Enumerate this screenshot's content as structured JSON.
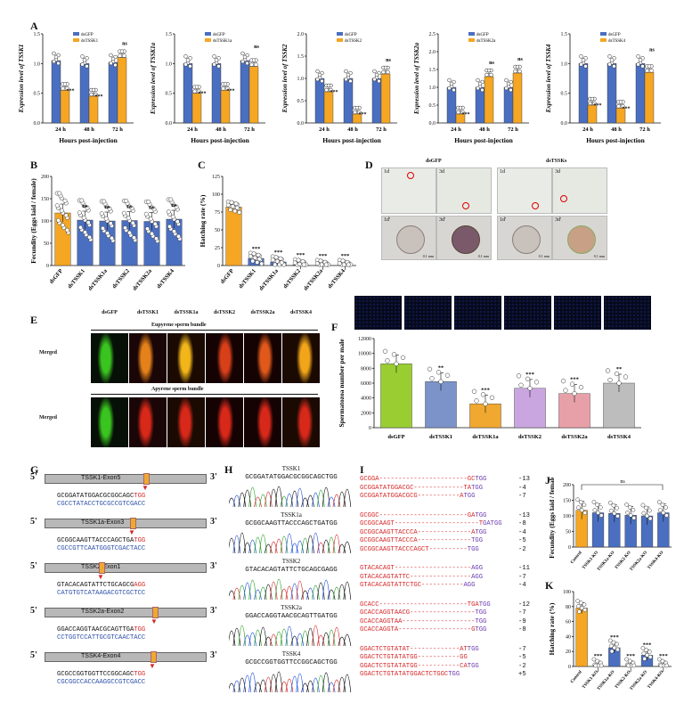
{
  "panels": {
    "A": "A",
    "B": "B",
    "C": "C",
    "D": "D",
    "E": "E",
    "F": "F",
    "G": "G",
    "H": "H",
    "I": "I",
    "J": "J",
    "K": "K"
  },
  "panelA": {
    "xlabel": "Hours post-injection",
    "times": [
      "24 h",
      "48 h",
      "72 h"
    ],
    "charts": [
      {
        "ylabel": "Expression level of TSSK1",
        "legend": [
          "dsGFP",
          "dsTSSK1"
        ],
        "ctrl": [
          1.05,
          1.0,
          1.02
        ],
        "trt": [
          0.55,
          0.45,
          1.1
        ],
        "sig": [
          "***",
          "***",
          "ns"
        ],
        "ymax": 1.5,
        "yticks": [
          "0.0",
          "0.5",
          "1.0",
          "1.5"
        ]
      },
      {
        "ylabel": "Expression level of TSSK1a",
        "legend": [
          "dsGFP",
          "dsTSSK1a"
        ],
        "ctrl": [
          1.0,
          1.0,
          1.05
        ],
        "trt": [
          0.5,
          0.55,
          0.95
        ],
        "sig": [
          "***",
          "***",
          "ns"
        ],
        "ymax": 1.5,
        "yticks": [
          "0.0",
          "0.5",
          "1.0",
          "1.5"
        ]
      },
      {
        "ylabel": "Expression level of TSSK2",
        "legend": [
          "dsGFP",
          "dsTSSK2"
        ],
        "ctrl": [
          1.0,
          1.0,
          1.0
        ],
        "trt": [
          0.7,
          0.2,
          1.1
        ],
        "sig": [
          "***",
          "***",
          "ns"
        ],
        "ymax": 2.0,
        "yticks": [
          "0.0",
          "0.5",
          "1.0",
          "1.5",
          "2.0"
        ]
      },
      {
        "ylabel": "Expression level of TSSK2a",
        "legend": [
          "dsGFP",
          "dsTSSK2a"
        ],
        "ctrl": [
          1.0,
          1.0,
          1.0
        ],
        "trt": [
          0.25,
          1.3,
          1.4
        ],
        "sig": [
          "***",
          "ns",
          "ns"
        ],
        "ymax": 2.5,
        "yticks": [
          "0.0",
          "0.5",
          "1.0",
          "1.5",
          "2.0",
          "2.5"
        ]
      },
      {
        "ylabel": "Expression level of TSSK4",
        "legend": [
          "dsGFP",
          "dsTSSK4"
        ],
        "ctrl": [
          1.0,
          1.0,
          1.0
        ],
        "trt": [
          0.3,
          0.25,
          0.85
        ],
        "sig": [
          "***",
          "***",
          "ns"
        ],
        "ymax": 1.5,
        "yticks": [
          "0.0",
          "0.5",
          "1.0",
          "1.5"
        ]
      }
    ]
  },
  "panelB": {
    "ylabel": "Fecundity (Eggs laid / female)",
    "categories": [
      "dsGFP",
      "dsTSSK1",
      "dsTSSK1a",
      "dsTSSK2",
      "dsTSSK2a",
      "dsTSSK4"
    ],
    "values": [
      118,
      102,
      100,
      101,
      99,
      104
    ],
    "sig": [
      "",
      "ns",
      "ns",
      "ns",
      "ns",
      "ns"
    ],
    "yticks": [
      "0",
      "50",
      "100",
      "150",
      "200"
    ],
    "ymax": 200
  },
  "panelC": {
    "ylabel": "Hatching rate (%)",
    "categories": [
      "dsGFP",
      "dsTSSK1",
      "dsTSSK1a",
      "dsTSSK2",
      "dsTSSK2a",
      "dsTSSK4"
    ],
    "values": [
      82,
      10,
      5,
      1,
      0,
      0
    ],
    "sig": [
      "",
      "***",
      "***",
      "***",
      "***",
      "***"
    ],
    "yticks": [
      "0",
      "25",
      "50",
      "75",
      "100",
      "125"
    ],
    "ymax": 125
  },
  "panelD": {
    "group1": "dsGFP",
    "group2": "dsTSSKs",
    "labels_top": [
      "1d",
      "3d",
      "1d",
      "3d"
    ],
    "labels_bottom": [
      "1d'",
      "3d'",
      "1d'",
      "3d'"
    ],
    "scale": "0.1 mm"
  },
  "panelE": {
    "columns": [
      "dsGFP",
      "dsTSSK1",
      "dsTSSK1a",
      "dsTSSK2",
      "dsTSSK2a",
      "dsTSSK4"
    ],
    "row_header_1": "Eupyrene sperm bundle",
    "row_header_2": "Apyrene sperm bundle",
    "row_label": "Merged"
  },
  "panelF": {
    "ylabel": "Spermatozoa number per male",
    "categories": [
      "dsGFP",
      "dsTSSK1",
      "dsTSSK1a",
      "dsTSSK2",
      "dsTSSK2a",
      "dsTSSK4"
    ],
    "values": [
      8600,
      6200,
      3200,
      5300,
      4600,
      6000
    ],
    "colors": [
      "#9acd32",
      "#7b93c8",
      "#f0a830",
      "#c9a6e0",
      "#e8a0a8",
      "#bdbdbd"
    ],
    "sig": [
      "",
      "**",
      "***",
      "***",
      "***",
      "**"
    ],
    "yticks": [
      "0",
      "2000",
      "4000",
      "6000",
      "8000",
      "10000",
      "12000"
    ],
    "ymax": 12000
  },
  "panelG": {
    "genes": [
      {
        "name": "TSSK1-Exon5",
        "top": "GCGGATATGGACGCGGCAGC",
        "pam": "TGG",
        "bottom": "CGCCTATACCTGCGCCGTCGACC"
      },
      {
        "name": "TSSK1a-Exon3",
        "top": "GCGGCAAGTTACCCAGCTGA",
        "pam": "TGG",
        "bottom": "CGCCGTTCAATGGGTCGACTACC"
      },
      {
        "name": "TSSK2-Exon1",
        "top": "GTACACAGTATTCTGCAGCG",
        "pam": "AGG",
        "bottom": "CATGTGTCATAAGACGTCGCTCC"
      },
      {
        "name": "TSSK2a-Exon2",
        "top": "GGACCAGGTAACGCAGTTGA",
        "pam": "TGG",
        "bottom": "CCTGGTCCATTGCGTCAACTACC"
      },
      {
        "name": "TSSK4-Exon4",
        "top": "GCGCCGGTGGTTCCGGCAGC",
        "pam": "TGG",
        "bottom": "CGCGGCCACCAAGGCCGTCGACC"
      }
    ],
    "five": "5'",
    "three": "3'"
  },
  "panelH": {
    "traces": [
      {
        "name": "TSSK1",
        "seq": "GCGGATATGGACGCGGCAGCTGG"
      },
      {
        "name": "TSSK1a",
        "seq": "GCGGCAAGTTACCCAGCTGATGG"
      },
      {
        "name": "TSSK2",
        "seq": "GTACACAGTATTCTGCAGCGAGG"
      },
      {
        "name": "TSSK2a",
        "seq": "GGACCAGGTAACGCAGTTGATGG"
      },
      {
        "name": "TSSK4",
        "seq": "GCGCCGGTGGTTCCGGCAGCTGG"
      }
    ]
  },
  "panelI": {
    "groups": [
      [
        {
          "s": "GCGGA-----------------------GC",
          "p": "TGG",
          "d": "-13"
        },
        {
          "s": "GCGGATATGGACGC-------------TA",
          "p": "TGG",
          "d": "-4"
        },
        {
          "s": "GCGGATATGGACGCG-----------A",
          "p": "TGG",
          "d": "-7"
        }
      ],
      [
        {
          "s": "GCGGC-----------------------GA",
          "p": "TGG",
          "d": "-13"
        },
        {
          "s": "GCGGCAAGT----------------------T",
          "p": "GATGG",
          "d": "-8"
        },
        {
          "s": "GCGGCAAGTTACCCA--------------A",
          "p": "TGG",
          "d": "-4"
        },
        {
          "s": "GCGGCAAGTTACCCA--------------",
          "p": "TGG",
          "d": "-5"
        },
        {
          "s": "GCGGCAAGTTACCCAGCT----------",
          "p": "TGG",
          "d": "-2"
        }
      ],
      [
        {
          "s": "GTACACAGT--------------------",
          "p": "AGG",
          "d": "-11"
        },
        {
          "s": "GTACACAGTATTC----------------",
          "p": "AGG",
          "d": "-7"
        },
        {
          "s": "GTACACAGTATTCTGC-----------",
          "p": "AGG",
          "d": "-4"
        }
      ],
      [
        {
          "s": "GCACC-----------------------TGA",
          "p": "TGG",
          "d": "-12"
        },
        {
          "s": "GCACCAGGTAACG-----------------",
          "p": "TGG",
          "d": "-7"
        },
        {
          "s": "GCACCAGGTAA-------------------",
          "p": "TGG",
          "d": "-9"
        },
        {
          "s": "GCACCAGGTA-------------------G",
          "p": "TGG",
          "d": "-8"
        }
      ],
      [
        {
          "s": "GGACTCTGTATAT-------------AT",
          "p": "TGG",
          "d": "-7"
        },
        {
          "s": "GGACTCTGTATATGG-----------GG",
          "p": "",
          "d": "-5"
        },
        {
          "s": "GGACTCTGTATATGG-----------CA",
          "p": "TGG",
          "d": "-2"
        },
        {
          "s": "GGACTCTGTATATGGACTCTGGC",
          "p": "TGG",
          "d": "+5"
        }
      ]
    ]
  },
  "panelJ": {
    "ylabel": "Fecundity (Eggs laid / female)",
    "categories": [
      "Control",
      "TSSK1-KO",
      "TSSK1a-KO",
      "TSSK2-KO",
      "TSSK2a-KO",
      "TSSK4-KO"
    ],
    "values": [
      118,
      110,
      108,
      102,
      100,
      110
    ],
    "yticks": [
      "0",
      "50",
      "100",
      "150",
      "200"
    ],
    "ymax": 200,
    "ns": "ns"
  },
  "panelK": {
    "ylabel": "Hatching rate (%)",
    "categories": [
      "Control",
      "TSSK1-KO",
      "TSSK1a-KO",
      "TSSK2-KO",
      "TSSK2a-KO",
      "TSSK4-KO"
    ],
    "values": [
      78,
      0,
      25,
      0,
      15,
      0
    ],
    "sig": [
      "",
      "***",
      "***",
      "***",
      "***",
      "***"
    ],
    "yticks": [
      "0",
      "20",
      "40",
      "60",
      "80",
      "100"
    ],
    "ymax": 100
  },
  "colors": {
    "ctrl": "#4a6fc1",
    "trt": "#f5a623",
    "green": "#9acd32",
    "red": "#d62728",
    "blue": "#2b4fa8"
  }
}
